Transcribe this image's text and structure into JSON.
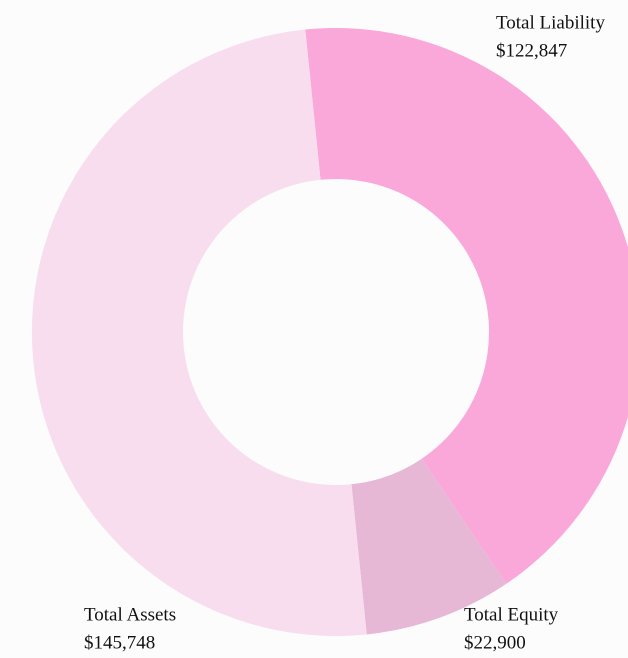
{
  "chart_data": {
    "type": "donut",
    "categories": [
      "Total Liability",
      "Total Equity",
      "Total Assets"
    ],
    "values": [
      122847,
      22900,
      145748
    ],
    "value_labels": [
      "$122,847",
      "$22,900",
      "$145,748"
    ],
    "colors": [
      "#f9a8d9",
      "#e6b8d6",
      "#f7dded"
    ]
  }
}
